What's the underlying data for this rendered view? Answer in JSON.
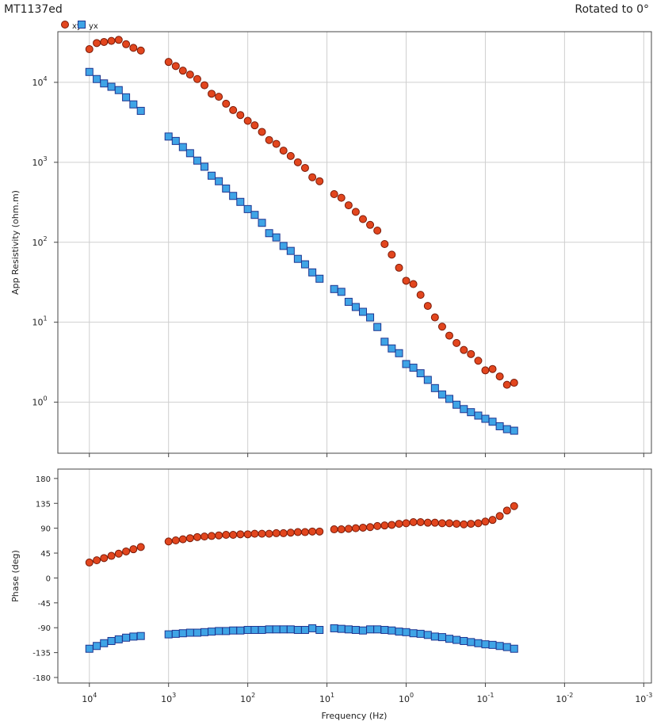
{
  "chart_data": [
    {
      "type": "scatter",
      "title": "MT1137ed",
      "subtitle": "Rotated to 0°",
      "ylabel": "App Resistivity (ohm.m)",
      "log_x": true,
      "log_y": true,
      "grid": true,
      "legend": "top-left",
      "x": [
        10000,
        8070,
        6530,
        5270,
        4260,
        3440,
        2780,
        2240,
        1000,
        811,
        659,
        535,
        434,
        352,
        286,
        232,
        188,
        153,
        124,
        100,
        81.7,
        66.2,
        53.7,
        43.6,
        35.4,
        28.7,
        23.3,
        18.9,
        15.3,
        12.4,
        8.11,
        6.58,
        5.33,
        4.33,
        3.51,
        2.85,
        2.31,
        1.87,
        1.52,
        1.23,
        1.0,
        0.811,
        0.658,
        0.533,
        0.433,
        0.351,
        0.285,
        0.231,
        0.187,
        0.152,
        0.123,
        0.1,
        0.0811,
        0.0658,
        0.0533,
        0.0433
      ],
      "xlim": [
        25000,
        0.0008
      ],
      "xticks": [
        10000,
        1000,
        100,
        10,
        1,
        0.1,
        0.01,
        0.001
      ],
      "ylim": [
        0.23,
        43000
      ],
      "yticks": [
        {
          "value": 1,
          "label": "10",
          "exponent": "0"
        },
        {
          "value": 10,
          "label": "10",
          "exponent": "1"
        },
        {
          "value": 100,
          "label": "10",
          "exponent": "2"
        },
        {
          "value": 1000,
          "label": "10",
          "exponent": "3"
        },
        {
          "value": 10000,
          "label": "10",
          "exponent": "4"
        }
      ],
      "series": [
        {
          "name": "xy",
          "marker": "circle",
          "color": "#e2461e",
          "edge": "#7a1a08",
          "values": [
            26000,
            31000,
            32000,
            33000,
            34000,
            30000,
            27000,
            25000,
            18000,
            16000,
            14000,
            12500,
            11000,
            9200,
            7200,
            6600,
            5400,
            4500,
            3900,
            3300,
            2900,
            2400,
            1900,
            1700,
            1400,
            1200,
            1000,
            850,
            650,
            580,
            400,
            360,
            290,
            240,
            195,
            165,
            140,
            95,
            70,
            48,
            33,
            30,
            22,
            16,
            11.5,
            8.8,
            6.8,
            5.5,
            4.5,
            4.0,
            3.3,
            2.5,
            2.6,
            2.1,
            1.65,
            1.75
          ]
        },
        {
          "name": "yx",
          "marker": "square",
          "color": "#3fa4e6",
          "edge": "#1f3590",
          "values": [
            13500,
            11000,
            9700,
            8800,
            8000,
            6500,
            5300,
            4400,
            2100,
            1850,
            1550,
            1300,
            1050,
            880,
            680,
            580,
            470,
            380,
            320,
            260,
            220,
            175,
            130,
            115,
            90,
            78,
            62,
            53,
            42,
            35,
            26,
            24,
            18,
            15.5,
            13.5,
            11.5,
            8.7,
            5.7,
            4.7,
            4.1,
            3.0,
            2.7,
            2.3,
            1.9,
            1.5,
            1.25,
            1.1,
            0.93,
            0.82,
            0.75,
            0.68,
            0.62,
            0.57,
            0.5,
            0.46,
            0.44
          ]
        }
      ]
    },
    {
      "type": "scatter",
      "ylabel": "Phase (deg)",
      "xlabel": "Frequency (Hz)",
      "log_x": true,
      "log_y": false,
      "grid": true,
      "x": [
        10000,
        8070,
        6530,
        5270,
        4260,
        3440,
        2780,
        2240,
        1000,
        811,
        659,
        535,
        434,
        352,
        286,
        232,
        188,
        153,
        124,
        100,
        81.7,
        66.2,
        53.7,
        43.6,
        35.4,
        28.7,
        23.3,
        18.9,
        15.3,
        12.4,
        8.11,
        6.58,
        5.33,
        4.33,
        3.51,
        2.85,
        2.31,
        1.87,
        1.52,
        1.23,
        1.0,
        0.811,
        0.658,
        0.533,
        0.433,
        0.351,
        0.285,
        0.231,
        0.187,
        0.152,
        0.123,
        0.1,
        0.0811,
        0.0658,
        0.0533,
        0.0433
      ],
      "xlim": [
        25000,
        0.0008
      ],
      "xticks": [
        {
          "value": 10000,
          "label": "10",
          "exponent": "4"
        },
        {
          "value": 1000,
          "label": "10",
          "exponent": "3"
        },
        {
          "value": 100,
          "label": "10",
          "exponent": "2"
        },
        {
          "value": 10,
          "label": "10",
          "exponent": "1"
        },
        {
          "value": 1,
          "label": "10",
          "exponent": "0"
        },
        {
          "value": 0.1,
          "label": "10",
          "exponent": "-1"
        },
        {
          "value": 0.01,
          "label": "10",
          "exponent": "-2"
        },
        {
          "value": 0.001,
          "label": "10",
          "exponent": "-3"
        }
      ],
      "ylim": [
        -190,
        197
      ],
      "yticks": [
        180,
        135,
        90,
        45,
        0,
        -45,
        -90,
        -135,
        -180
      ],
      "series": [
        {
          "marker": "circle",
          "color": "#e2461e",
          "edge": "#7a1a08",
          "values": [
            28,
            32,
            36,
            40,
            44,
            48,
            52,
            56,
            66,
            68,
            70,
            72,
            74,
            75,
            76,
            77,
            78,
            78,
            79,
            79,
            80,
            80,
            80,
            81,
            81,
            82,
            83,
            83,
            84,
            84,
            88,
            88,
            89,
            90,
            91,
            92,
            94,
            95,
            96,
            98,
            99,
            101,
            101,
            100,
            100,
            99,
            99,
            98,
            97,
            98,
            99,
            102,
            105,
            112,
            122,
            130
          ]
        },
        {
          "marker": "square",
          "color": "#3fa4e6",
          "edge": "#1f3590",
          "values": [
            -128,
            -123,
            -118,
            -114,
            -111,
            -108,
            -106,
            -105,
            -102,
            -101,
            -100,
            -99,
            -99,
            -98,
            -97,
            -96,
            -96,
            -95,
            -95,
            -94,
            -94,
            -94,
            -93,
            -93,
            -93,
            -93,
            -94,
            -94,
            -91,
            -94,
            -91,
            -92,
            -93,
            -94,
            -95,
            -93,
            -93,
            -94,
            -95,
            -97,
            -98,
            -100,
            -101,
            -103,
            -106,
            -107,
            -110,
            -112,
            -114,
            -116,
            -118,
            -120,
            -121,
            -123,
            -125,
            -128
          ]
        }
      ]
    }
  ]
}
